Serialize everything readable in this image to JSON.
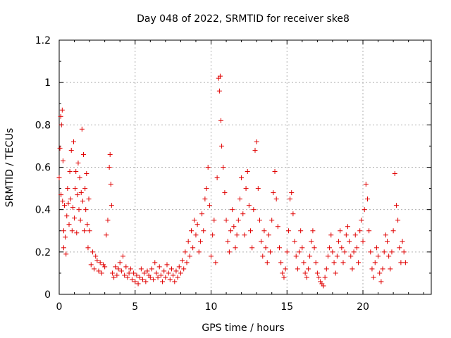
{
  "chart_data": {
    "type": "scatter",
    "title": "Day 048 of 2022, SRMTID for receiver ske8",
    "xlabel": "GPS time / hours",
    "ylabel": "SRMTID / TECUs",
    "xlim": [
      0,
      24.5
    ],
    "ylim": [
      0,
      1.2
    ],
    "x_ticks": [
      0,
      5,
      10,
      15,
      20
    ],
    "x_tick_labels": [
      "0",
      "5",
      "10",
      "15",
      "20"
    ],
    "y_ticks": [
      0,
      0.2,
      0.4,
      0.6,
      0.8,
      1.0,
      1.2
    ],
    "y_tick_labels": [
      "0",
      "0.2",
      "0.4",
      "0.6",
      "0.8",
      "1",
      "1.2"
    ],
    "grid": true,
    "marker": "plus",
    "series": [
      {
        "name": "SRMTID",
        "color": "#e00000",
        "x": [
          0.0,
          0.05,
          0.1,
          0.12,
          0.15,
          0.2,
          0.22,
          0.25,
          0.3,
          0.3,
          0.35,
          0.4,
          0.45,
          0.5,
          0.55,
          0.6,
          0.65,
          0.7,
          0.75,
          0.8,
          0.85,
          0.9,
          0.95,
          1.0,
          1.05,
          1.1,
          1.15,
          1.2,
          1.25,
          1.3,
          1.35,
          1.4,
          1.45,
          1.5,
          1.55,
          1.6,
          1.65,
          1.7,
          1.75,
          1.8,
          1.85,
          1.9,
          1.95,
          2.0,
          2.1,
          2.2,
          2.3,
          2.4,
          2.5,
          2.6,
          2.7,
          2.8,
          2.9,
          3.0,
          3.1,
          3.2,
          3.3,
          3.35,
          3.4,
          3.45,
          3.5,
          3.6,
          3.7,
          3.8,
          3.9,
          4.0,
          4.1,
          4.2,
          4.3,
          4.4,
          4.5,
          4.6,
          4.7,
          4.8,
          4.9,
          5.0,
          5.1,
          5.2,
          5.3,
          5.4,
          5.5,
          5.6,
          5.7,
          5.8,
          5.9,
          6.0,
          6.1,
          6.2,
          6.3,
          6.4,
          6.5,
          6.6,
          6.7,
          6.8,
          6.9,
          7.0,
          7.1,
          7.2,
          7.3,
          7.4,
          7.5,
          7.6,
          7.7,
          7.8,
          7.9,
          8.0,
          8.1,
          8.2,
          8.3,
          8.4,
          8.5,
          8.6,
          8.7,
          8.8,
          8.9,
          9.0,
          9.1,
          9.2,
          9.3,
          9.4,
          9.5,
          9.6,
          9.7,
          9.8,
          9.9,
          10.0,
          10.1,
          10.2,
          10.3,
          10.4,
          10.5,
          10.55,
          10.6,
          10.65,
          10.7,
          10.8,
          10.9,
          11.0,
          11.1,
          11.2,
          11.3,
          11.4,
          11.5,
          11.6,
          11.7,
          11.8,
          11.9,
          12.0,
          12.1,
          12.2,
          12.3,
          12.4,
          12.5,
          12.6,
          12.7,
          12.8,
          12.9,
          13.0,
          13.1,
          13.2,
          13.3,
          13.4,
          13.5,
          13.6,
          13.7,
          13.8,
          13.9,
          14.0,
          14.1,
          14.2,
          14.3,
          14.4,
          14.5,
          14.6,
          14.7,
          14.8,
          14.9,
          15.0,
          15.1,
          15.2,
          15.3,
          15.4,
          15.5,
          15.6,
          15.7,
          15.8,
          15.9,
          16.0,
          16.1,
          16.2,
          16.3,
          16.4,
          16.5,
          16.6,
          16.7,
          16.8,
          16.9,
          17.0,
          17.1,
          17.2,
          17.3,
          17.4,
          17.5,
          17.6,
          17.7,
          17.8,
          17.9,
          18.0,
          18.1,
          18.2,
          18.3,
          18.4,
          18.5,
          18.6,
          18.7,
          18.8,
          18.9,
          19.0,
          19.1,
          19.2,
          19.3,
          19.4,
          19.5,
          19.6,
          19.7,
          19.8,
          19.9,
          20.0,
          20.1,
          20.2,
          20.3,
          20.4,
          20.5,
          20.6,
          20.7,
          20.8,
          20.9,
          21.0,
          21.1,
          21.2,
          21.3,
          21.4,
          21.5,
          21.6,
          21.7,
          21.8,
          21.9,
          22.0,
          22.1,
          22.2,
          22.3,
          22.4,
          22.5,
          22.6,
          22.7,
          22.8
        ],
        "y": [
          0.55,
          0.69,
          0.84,
          0.47,
          0.8,
          0.87,
          0.44,
          0.63,
          0.3,
          0.22,
          0.42,
          0.27,
          0.19,
          0.37,
          0.5,
          0.43,
          0.33,
          0.58,
          0.45,
          0.68,
          0.3,
          0.41,
          0.72,
          0.36,
          0.5,
          0.58,
          0.29,
          0.47,
          0.62,
          0.4,
          0.55,
          0.35,
          0.48,
          0.78,
          0.44,
          0.66,
          0.3,
          0.5,
          0.4,
          0.57,
          0.33,
          0.22,
          0.45,
          0.3,
          0.14,
          0.2,
          0.12,
          0.18,
          0.16,
          0.11,
          0.15,
          0.1,
          0.14,
          0.13,
          0.28,
          0.35,
          0.6,
          0.66,
          0.52,
          0.42,
          0.1,
          0.08,
          0.13,
          0.09,
          0.12,
          0.15,
          0.11,
          0.18,
          0.09,
          0.13,
          0.08,
          0.1,
          0.12,
          0.07,
          0.1,
          0.06,
          0.09,
          0.05,
          0.08,
          0.12,
          0.07,
          0.1,
          0.06,
          0.11,
          0.09,
          0.08,
          0.12,
          0.07,
          0.15,
          0.1,
          0.08,
          0.13,
          0.09,
          0.06,
          0.11,
          0.08,
          0.14,
          0.1,
          0.07,
          0.12,
          0.09,
          0.06,
          0.11,
          0.08,
          0.13,
          0.1,
          0.16,
          0.12,
          0.2,
          0.15,
          0.25,
          0.18,
          0.3,
          0.22,
          0.35,
          0.28,
          0.33,
          0.2,
          0.25,
          0.38,
          0.3,
          0.45,
          0.5,
          0.6,
          0.42,
          0.18,
          0.28,
          0.35,
          0.15,
          0.55,
          1.02,
          0.96,
          1.03,
          0.82,
          0.7,
          0.6,
          0.48,
          0.35,
          0.25,
          0.2,
          0.3,
          0.4,
          0.32,
          0.22,
          0.28,
          0.35,
          0.45,
          0.55,
          0.38,
          0.28,
          0.5,
          0.58,
          0.42,
          0.3,
          0.22,
          0.4,
          0.68,
          0.72,
          0.5,
          0.35,
          0.25,
          0.18,
          0.3,
          0.22,
          0.15,
          0.28,
          0.2,
          0.35,
          0.48,
          0.58,
          0.45,
          0.32,
          0.22,
          0.15,
          0.1,
          0.08,
          0.12,
          0.2,
          0.3,
          0.45,
          0.48,
          0.38,
          0.25,
          0.18,
          0.12,
          0.2,
          0.3,
          0.22,
          0.15,
          0.1,
          0.08,
          0.12,
          0.18,
          0.25,
          0.3,
          0.22,
          0.15,
          0.1,
          0.08,
          0.06,
          0.05,
          0.04,
          0.08,
          0.12,
          0.18,
          0.22,
          0.28,
          0.2,
          0.15,
          0.1,
          0.18,
          0.25,
          0.3,
          0.22,
          0.15,
          0.2,
          0.28,
          0.32,
          0.25,
          0.18,
          0.12,
          0.2,
          0.28,
          0.22,
          0.15,
          0.3,
          0.35,
          0.25,
          0.4,
          0.52,
          0.45,
          0.3,
          0.2,
          0.12,
          0.08,
          0.15,
          0.22,
          0.18,
          0.1,
          0.06,
          0.12,
          0.2,
          0.28,
          0.25,
          0.18,
          0.12,
          0.2,
          0.3,
          0.57,
          0.42,
          0.35,
          0.22,
          0.15,
          0.25,
          0.2,
          0.15
        ]
      }
    ]
  }
}
